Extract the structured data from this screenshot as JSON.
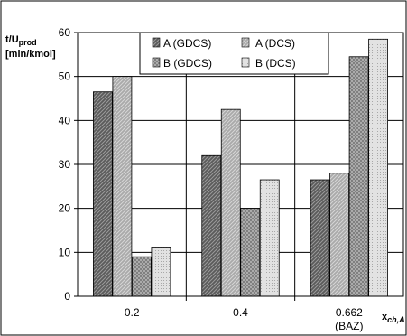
{
  "chart_data": {
    "type": "bar",
    "ylabel": {
      "main": "t/U",
      "sub": "prod",
      "unit": "[min/kmol]"
    },
    "xlabel": {
      "main": "x",
      "sub": "ch,A"
    },
    "categories": [
      {
        "line1": "0.2",
        "line2": ""
      },
      {
        "line1": "0.4",
        "line2": ""
      },
      {
        "line1": "0.662",
        "line2": "(BAZ)"
      }
    ],
    "ylim": [
      0,
      60
    ],
    "yticks": [
      "0",
      "10",
      "20",
      "30",
      "40",
      "50",
      "60"
    ],
    "grid": true,
    "legend_position": "top-right",
    "series": [
      {
        "name": "A (GDCS)",
        "values": [
          46.5,
          32,
          26.5
        ],
        "pattern": "diag-dark"
      },
      {
        "name": "A (DCS)",
        "values": [
          50,
          42.5,
          28
        ],
        "pattern": "diag-light"
      },
      {
        "name": "B (GDCS)",
        "values": [
          9,
          20,
          54.5
        ],
        "pattern": "cross-dark"
      },
      {
        "name": "B (DCS)",
        "values": [
          11,
          26.5,
          58.5
        ],
        "pattern": "dots-light"
      }
    ],
    "colors": {
      "frame": "#000000",
      "background": "#ffffff"
    }
  }
}
